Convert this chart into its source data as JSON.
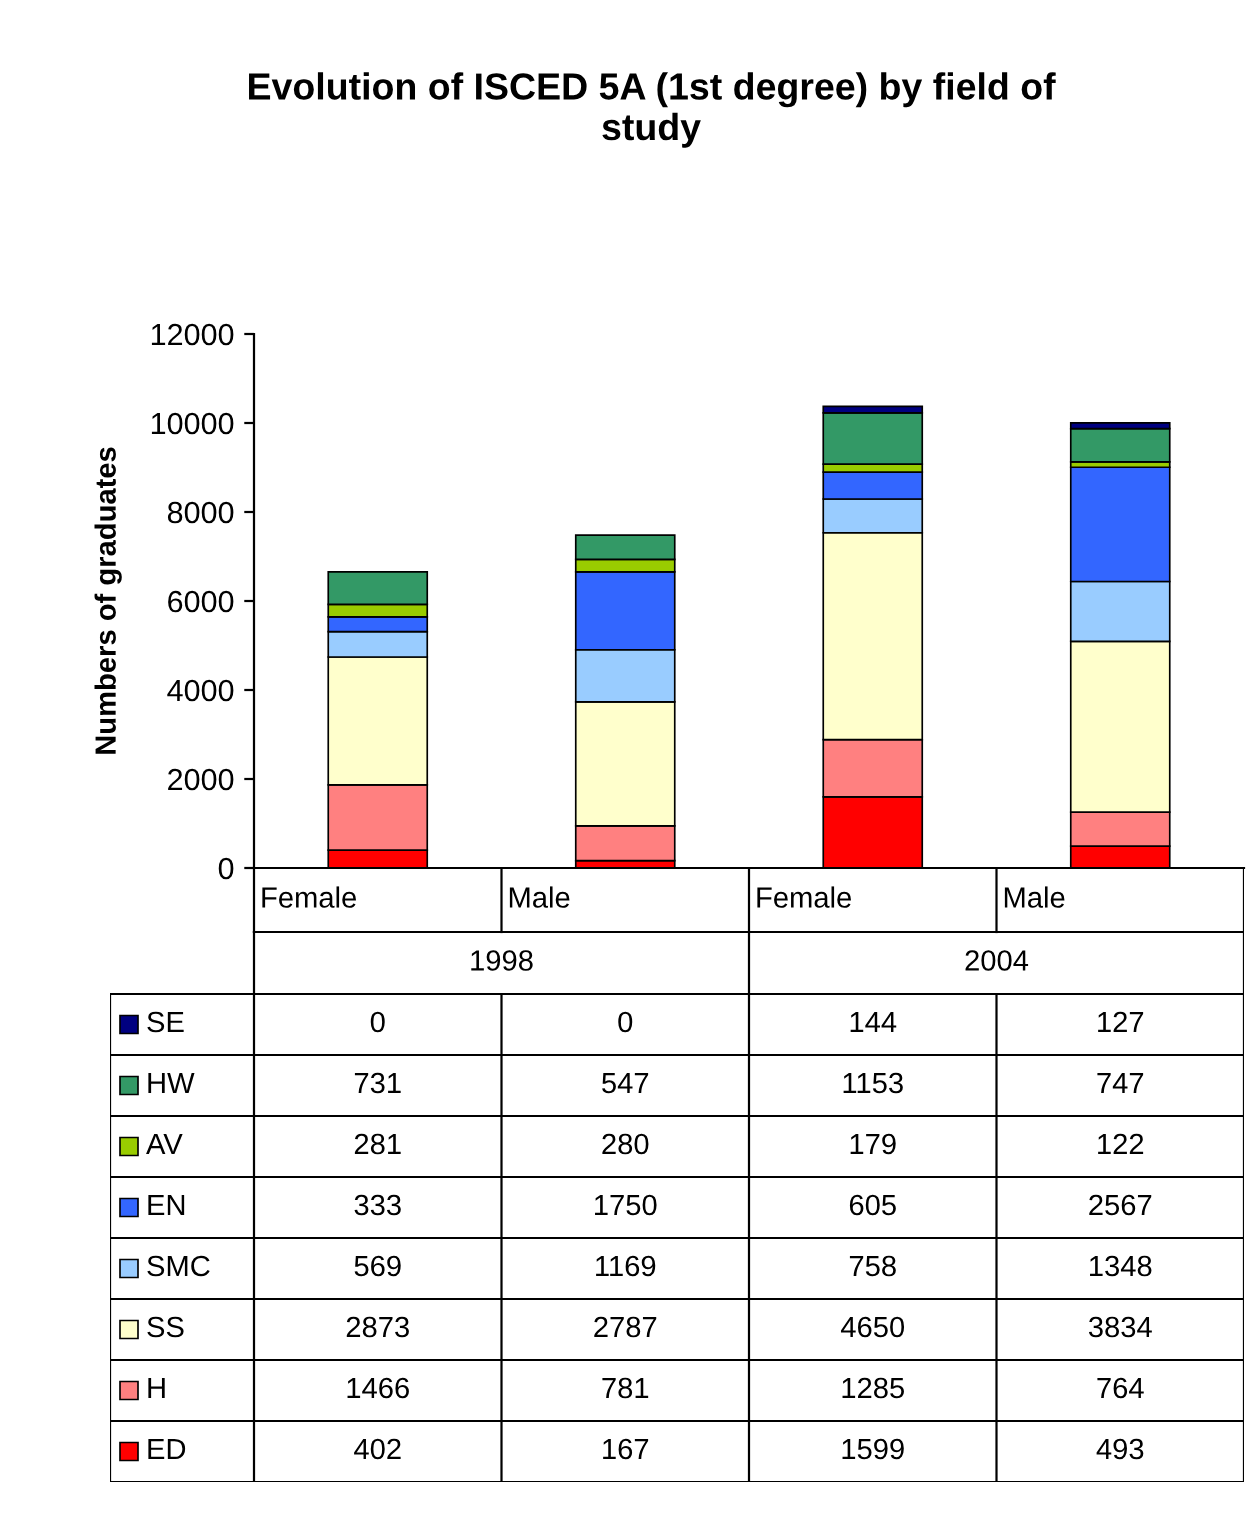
{
  "chart_data": {
    "type": "bar",
    "title": "Evolution of ISCED 5A (1st degree) by field of study",
    "ylabel": "Numbers of graduates",
    "categories": [
      "Female",
      "Male",
      "Female",
      "Male"
    ],
    "annotations": [
      "1998",
      "2004"
    ],
    "stacked": true,
    "data_labels": true,
    "legend": "bottom",
    "grid": false,
    "ylim": [
      0,
      12000
    ],
    "yticks": [
      0,
      2000,
      4000,
      6000,
      8000,
      10000,
      12000
    ],
    "series": [
      {
        "name": "ED",
        "color": "#ff0000",
        "values": [
          402,
          167,
          1599,
          493
        ]
      },
      {
        "name": "H",
        "color": "#ff8080",
        "values": [
          1466,
          781,
          1285,
          764
        ]
      },
      {
        "name": "SS",
        "color": "#ffffcc",
        "values": [
          2873,
          2787,
          4650,
          3834
        ]
      },
      {
        "name": "SMC",
        "color": "#99ccff",
        "values": [
          569,
          1169,
          758,
          1348
        ]
      },
      {
        "name": "EN",
        "color": "#3366ff",
        "values": [
          333,
          1750,
          605,
          2567
        ]
      },
      {
        "name": "AV",
        "color": "#99cc00",
        "values": [
          281,
          280,
          179,
          122
        ]
      },
      {
        "name": "HW",
        "color": "#339966",
        "values": [
          731,
          547,
          1153,
          747
        ]
      },
      {
        "name": "SE",
        "color": "#000080",
        "values": [
          0,
          0,
          144,
          127
        ]
      }
    ]
  }
}
